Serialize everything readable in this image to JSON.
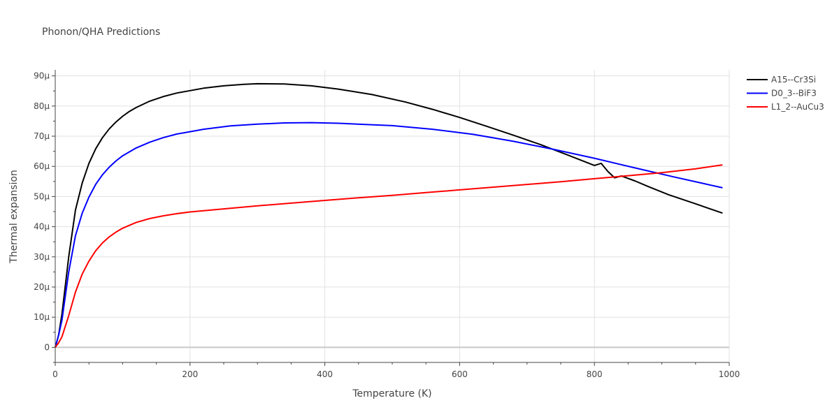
{
  "chart_data": {
    "type": "line",
    "title": "Phonon/QHA Predictions",
    "xlabel": "Temperature (K)",
    "ylabel": "Thermal expansion",
    "xlim": [
      0,
      1000
    ],
    "ylim": [
      -5,
      92
    ],
    "x_ticks": [
      0,
      200,
      400,
      600,
      800,
      1000
    ],
    "x_tick_labels": [
      "0",
      "200",
      "400",
      "600",
      "800",
      "1000"
    ],
    "y_ticks": [
      0,
      10,
      20,
      30,
      40,
      50,
      60,
      70,
      80,
      90
    ],
    "y_tick_labels": [
      "0",
      "10μ",
      "20μ",
      "30μ",
      "40μ",
      "50μ",
      "60μ",
      "70μ",
      "80μ",
      "90μ"
    ],
    "grid": true,
    "legend_position": "top-right",
    "series": [
      {
        "name": "A15--Cr3Si",
        "color": "#000000",
        "x": [
          0,
          5,
          10,
          20,
          30,
          40,
          50,
          60,
          70,
          80,
          90,
          100,
          110,
          120,
          140,
          160,
          180,
          200,
          220,
          250,
          280,
          300,
          340,
          380,
          420,
          470,
          520,
          560,
          600,
          640,
          680,
          720,
          760,
          800,
          810,
          820,
          830,
          840,
          860,
          880,
          910,
          950,
          990
        ],
        "y": [
          0,
          4,
          11,
          30,
          45.5,
          54.5,
          61,
          65.8,
          69.5,
          72.4,
          74.7,
          76.6,
          78.2,
          79.5,
          81.6,
          83.1,
          84.3,
          85.1,
          85.9,
          86.7,
          87.2,
          87.4,
          87.3,
          86.7,
          85.6,
          83.8,
          81.3,
          78.9,
          76.2,
          73.3,
          70.3,
          67.2,
          63.8,
          60.3,
          61,
          58.3,
          56.2,
          56.8,
          55.2,
          53.3,
          50.6,
          47.6,
          44.5
        ]
      },
      {
        "name": "D0_3--BiF3",
        "color": "#0000ff",
        "x": [
          0,
          5,
          10,
          20,
          30,
          40,
          50,
          60,
          70,
          80,
          90,
          100,
          120,
          140,
          160,
          180,
          200,
          220,
          260,
          300,
          340,
          380,
          420,
          460,
          500,
          560,
          620,
          680,
          740,
          800,
          860,
          920,
          960,
          990
        ],
        "y": [
          0,
          4,
          9,
          25,
          37,
          44.5,
          49.8,
          54,
          57.2,
          59.7,
          61.8,
          63.5,
          66.1,
          68,
          69.5,
          70.7,
          71.5,
          72.3,
          73.4,
          74,
          74.4,
          74.5,
          74.3,
          73.9,
          73.5,
          72.3,
          70.6,
          68.3,
          65.6,
          62.7,
          59.5,
          56.4,
          54.4,
          52.9
        ]
      },
      {
        "name": "L1_2--AuCu3",
        "color": "#ff0000",
        "x": [
          0,
          5,
          10,
          20,
          30,
          40,
          50,
          60,
          70,
          80,
          90,
          100,
          120,
          140,
          160,
          180,
          200,
          250,
          300,
          350,
          400,
          450,
          500,
          550,
          600,
          650,
          700,
          750,
          800,
          850,
          900,
          950,
          990
        ],
        "y": [
          0,
          1.5,
          3.5,
          10.5,
          18.3,
          24.3,
          28.6,
          32,
          34.6,
          36.6,
          38.2,
          39.5,
          41.4,
          42.7,
          43.6,
          44.3,
          44.9,
          45.9,
          46.9,
          47.8,
          48.7,
          49.6,
          50.4,
          51.3,
          52.2,
          53.1,
          54,
          54.9,
          55.9,
          56.9,
          57.9,
          59.2,
          60.5
        ]
      }
    ]
  }
}
